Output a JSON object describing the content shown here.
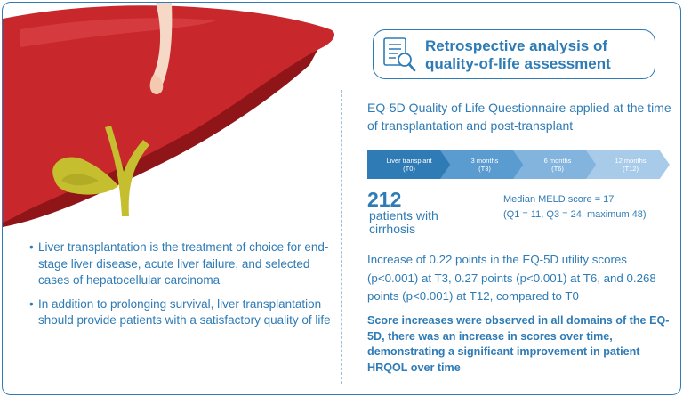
{
  "header": {
    "title": "Retrospective analysis of quality-of-life assessment",
    "icon": "document-magnifier-icon"
  },
  "questionnaire_text": "EQ-5D Quality of Life Questionnaire applied at the time of transplantation and post-transplant",
  "timeline": [
    {
      "label": "Liver transplant",
      "code": "(T0)",
      "color": "#2e7bb5"
    },
    {
      "label": "3 months",
      "code": "(T3)",
      "color": "#5a9bd0"
    },
    {
      "label": "6 months",
      "code": "(T6)",
      "color": "#83b4de"
    },
    {
      "label": "12 months",
      "code": "(T12)",
      "color": "#a9cbea"
    }
  ],
  "patients": {
    "count": "212",
    "label": "patients with cirrhosis"
  },
  "meld": {
    "line1": "Median MELD score = 17",
    "line2": "(Q1 = 11, Q3 = 24, maximum 48)"
  },
  "increase_text": "Increase of 0.22 points in the EQ-5D utility scores (p<0.001) at T3, 0.27 points (p<0.001) at T6, and 0.268 points (p<0.001) at T12, compared to T0",
  "scores_text": "Score increases were observed in all domains of the EQ-5D, there was an increase in scores over time, demonstrating a significant improvement in patient HRQOL over time",
  "bullets": [
    {
      "marker": "•",
      "text": "Liver transplantation is the treatment of choice for end-stage liver disease, acute liver failure, and selected cases of hepatocellular carcinoma"
    },
    {
      "marker": "•",
      "text": "In addition to prolonging survival, liver transplantation should provide patients with a satisfactory quality of life"
    }
  ],
  "colors": {
    "accent": "#2e7bb5",
    "liver": "#c8272b",
    "liver_dark": "#8f1518",
    "gallbladder": "#c5bf2f",
    "ligament": "#f6d8c6"
  }
}
